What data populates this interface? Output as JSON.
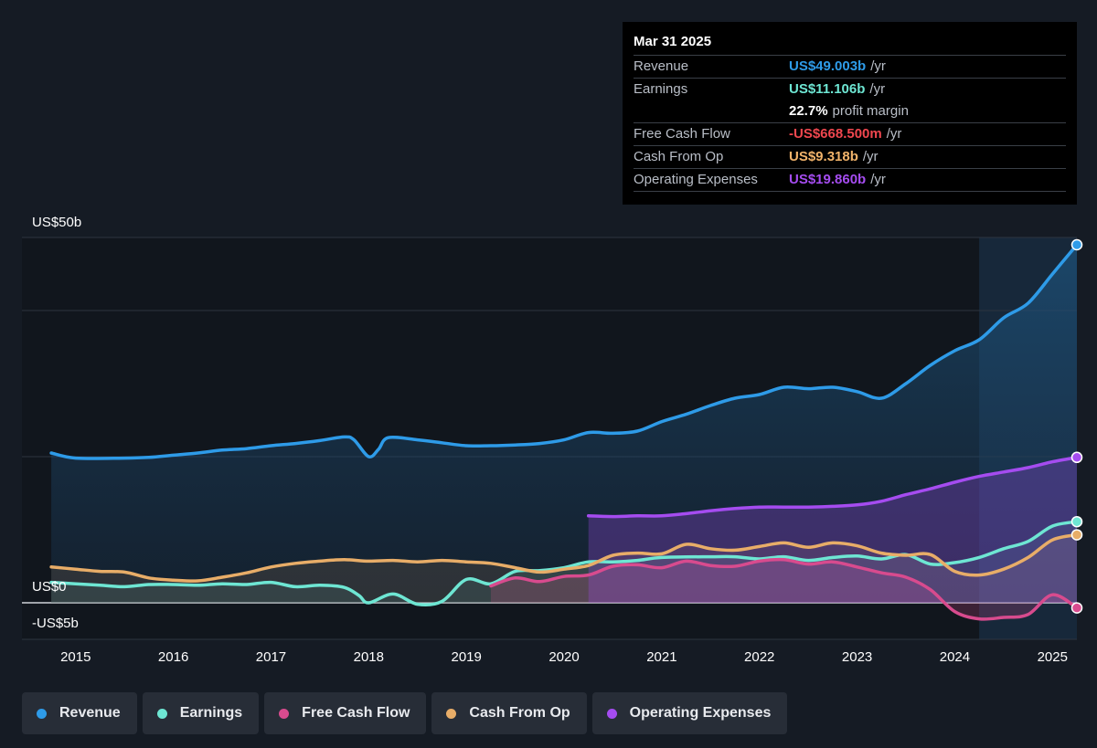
{
  "tooltip": {
    "date": "Mar 31 2025",
    "rows": [
      {
        "label": "Revenue",
        "value": "US$49.003b",
        "unit": "/yr",
        "color": "#2e9be8"
      },
      {
        "label": "Earnings",
        "value": "US$11.106b",
        "unit": "/yr",
        "color": "#6ee6d3"
      },
      {
        "label": "",
        "value": "22.7%",
        "unit": "profit margin",
        "color": "#ffffff"
      },
      {
        "label": "Free Cash Flow",
        "value": "-US$668.500m",
        "unit": "/yr",
        "color": "#f0474f"
      },
      {
        "label": "Cash From Op",
        "value": "US$9.318b",
        "unit": "/yr",
        "color": "#f2b46b"
      },
      {
        "label": "Operating Expenses",
        "value": "US$19.860b",
        "unit": "/yr",
        "color": "#a54cf0"
      }
    ]
  },
  "legend": [
    {
      "label": "Revenue",
      "color": "#2e9be8"
    },
    {
      "label": "Earnings",
      "color": "#6ee6d3"
    },
    {
      "label": "Free Cash Flow",
      "color": "#d84b8e"
    },
    {
      "label": "Cash From Op",
      "color": "#e8ad68"
    },
    {
      "label": "Operating Expenses",
      "color": "#a54cf0"
    }
  ],
  "chart_data": {
    "type": "line",
    "y_axis_labels": {
      "top": "US$50b",
      "zero": "US$0",
      "bottom": "-US$5b"
    },
    "ylim": [
      -5,
      50
    ],
    "xlim": [
      2014.45,
      2025.25
    ],
    "x_ticks": [
      2015,
      2016,
      2017,
      2018,
      2019,
      2020,
      2021,
      2022,
      2023,
      2024,
      2025
    ],
    "gridlines": [
      50,
      40,
      20,
      0
    ],
    "forecast_shade_start": 2024.25,
    "series": [
      {
        "name": "Revenue",
        "color": "#2e9be8",
        "points": [
          [
            2014.75,
            20.5
          ],
          [
            2015.0,
            19.8
          ],
          [
            2015.5,
            19.8
          ],
          [
            2015.75,
            19.9
          ],
          [
            2016.0,
            20.2
          ],
          [
            2016.25,
            20.5
          ],
          [
            2016.5,
            20.9
          ],
          [
            2016.75,
            21.1
          ],
          [
            2017.0,
            21.5
          ],
          [
            2017.25,
            21.8
          ],
          [
            2017.5,
            22.2
          ],
          [
            2017.75,
            22.7
          ],
          [
            2017.85,
            22.3
          ],
          [
            2018.0,
            20.0
          ],
          [
            2018.1,
            21.0
          ],
          [
            2018.2,
            22.6
          ],
          [
            2018.5,
            22.3
          ],
          [
            2018.75,
            21.9
          ],
          [
            2019.0,
            21.5
          ],
          [
            2019.25,
            21.5
          ],
          [
            2019.5,
            21.6
          ],
          [
            2019.75,
            21.8
          ],
          [
            2020.0,
            22.3
          ],
          [
            2020.25,
            23.3
          ],
          [
            2020.5,
            23.2
          ],
          [
            2020.75,
            23.5
          ],
          [
            2021.0,
            24.8
          ],
          [
            2021.25,
            25.8
          ],
          [
            2021.5,
            27.0
          ],
          [
            2021.75,
            28.0
          ],
          [
            2022.0,
            28.5
          ],
          [
            2022.25,
            29.5
          ],
          [
            2022.5,
            29.3
          ],
          [
            2022.75,
            29.5
          ],
          [
            2023.0,
            28.9
          ],
          [
            2023.25,
            28.0
          ],
          [
            2023.5,
            30.0
          ],
          [
            2023.75,
            32.5
          ],
          [
            2024.0,
            34.5
          ],
          [
            2024.25,
            36.0
          ],
          [
            2024.5,
            39.0
          ],
          [
            2024.75,
            41.0
          ],
          [
            2025.0,
            45.0
          ],
          [
            2025.25,
            49.0
          ]
        ]
      },
      {
        "name": "Earnings",
        "color": "#6ee6d3",
        "points": [
          [
            2014.75,
            2.8
          ],
          [
            2015.0,
            2.6
          ],
          [
            2015.25,
            2.4
          ],
          [
            2015.5,
            2.2
          ],
          [
            2015.75,
            2.5
          ],
          [
            2016.0,
            2.5
          ],
          [
            2016.25,
            2.4
          ],
          [
            2016.5,
            2.6
          ],
          [
            2016.75,
            2.5
          ],
          [
            2017.0,
            2.8
          ],
          [
            2017.25,
            2.2
          ],
          [
            2017.5,
            2.4
          ],
          [
            2017.75,
            2.1
          ],
          [
            2017.9,
            1.0
          ],
          [
            2018.0,
            0.0
          ],
          [
            2018.25,
            1.2
          ],
          [
            2018.5,
            -0.2
          ],
          [
            2018.75,
            0.2
          ],
          [
            2019.0,
            3.2
          ],
          [
            2019.25,
            2.6
          ],
          [
            2019.5,
            4.3
          ],
          [
            2019.75,
            4.4
          ],
          [
            2020.0,
            4.8
          ],
          [
            2020.25,
            5.6
          ],
          [
            2020.5,
            5.6
          ],
          [
            2020.75,
            5.8
          ],
          [
            2021.0,
            6.2
          ],
          [
            2021.5,
            6.3
          ],
          [
            2021.75,
            6.3
          ],
          [
            2022.0,
            6.0
          ],
          [
            2022.25,
            6.3
          ],
          [
            2022.5,
            5.8
          ],
          [
            2022.75,
            6.2
          ],
          [
            2023.0,
            6.4
          ],
          [
            2023.25,
            6.0
          ],
          [
            2023.5,
            6.6
          ],
          [
            2023.75,
            5.3
          ],
          [
            2024.0,
            5.5
          ],
          [
            2024.25,
            6.2
          ],
          [
            2024.5,
            7.4
          ],
          [
            2024.75,
            8.4
          ],
          [
            2025.0,
            10.5
          ],
          [
            2025.25,
            11.1
          ]
        ]
      },
      {
        "name": "Free Cash Flow",
        "color": "#d84b8e",
        "points": [
          [
            2019.25,
            2.3
          ],
          [
            2019.5,
            3.4
          ],
          [
            2019.75,
            2.9
          ],
          [
            2020.0,
            3.6
          ],
          [
            2020.25,
            3.8
          ],
          [
            2020.5,
            5.0
          ],
          [
            2020.75,
            5.2
          ],
          [
            2021.0,
            4.8
          ],
          [
            2021.25,
            5.7
          ],
          [
            2021.5,
            5.1
          ],
          [
            2021.75,
            5.0
          ],
          [
            2022.0,
            5.7
          ],
          [
            2022.25,
            5.9
          ],
          [
            2022.5,
            5.3
          ],
          [
            2022.75,
            5.6
          ],
          [
            2023.0,
            4.9
          ],
          [
            2023.25,
            4.1
          ],
          [
            2023.5,
            3.5
          ],
          [
            2023.75,
            1.8
          ],
          [
            2024.0,
            -1.2
          ],
          [
            2024.25,
            -2.2
          ],
          [
            2024.5,
            -2.0
          ],
          [
            2024.75,
            -1.6
          ],
          [
            2025.0,
            1.1
          ],
          [
            2025.25,
            -0.7
          ]
        ]
      },
      {
        "name": "Cash From Op",
        "color": "#e8ad68",
        "points": [
          [
            2014.75,
            4.9
          ],
          [
            2015.0,
            4.6
          ],
          [
            2015.25,
            4.3
          ],
          [
            2015.5,
            4.2
          ],
          [
            2015.75,
            3.4
          ],
          [
            2016.0,
            3.1
          ],
          [
            2016.25,
            3.0
          ],
          [
            2016.5,
            3.5
          ],
          [
            2016.75,
            4.1
          ],
          [
            2017.0,
            4.9
          ],
          [
            2017.25,
            5.4
          ],
          [
            2017.5,
            5.7
          ],
          [
            2017.75,
            5.9
          ],
          [
            2018.0,
            5.7
          ],
          [
            2018.25,
            5.8
          ],
          [
            2018.5,
            5.6
          ],
          [
            2018.75,
            5.8
          ],
          [
            2019.0,
            5.6
          ],
          [
            2019.25,
            5.4
          ],
          [
            2019.5,
            4.8
          ],
          [
            2019.75,
            4.2
          ],
          [
            2020.0,
            4.6
          ],
          [
            2020.25,
            5.1
          ],
          [
            2020.5,
            6.5
          ],
          [
            2020.75,
            6.8
          ],
          [
            2021.0,
            6.7
          ],
          [
            2021.25,
            8.0
          ],
          [
            2021.5,
            7.4
          ],
          [
            2021.75,
            7.2
          ],
          [
            2022.0,
            7.7
          ],
          [
            2022.25,
            8.2
          ],
          [
            2022.5,
            7.6
          ],
          [
            2022.75,
            8.2
          ],
          [
            2023.0,
            7.8
          ],
          [
            2023.25,
            6.8
          ],
          [
            2023.5,
            6.5
          ],
          [
            2023.75,
            6.6
          ],
          [
            2024.0,
            4.3
          ],
          [
            2024.25,
            3.8
          ],
          [
            2024.5,
            4.6
          ],
          [
            2024.75,
            6.2
          ],
          [
            2025.0,
            8.6
          ],
          [
            2025.25,
            9.3
          ]
        ]
      },
      {
        "name": "Operating Expenses",
        "color": "#a54cf0",
        "points": [
          [
            2020.25,
            11.9
          ],
          [
            2020.5,
            11.8
          ],
          [
            2020.75,
            11.9
          ],
          [
            2021.0,
            11.9
          ],
          [
            2021.25,
            12.2
          ],
          [
            2021.5,
            12.6
          ],
          [
            2021.75,
            12.9
          ],
          [
            2022.0,
            13.1
          ],
          [
            2022.25,
            13.1
          ],
          [
            2022.5,
            13.1
          ],
          [
            2022.75,
            13.2
          ],
          [
            2023.0,
            13.4
          ],
          [
            2023.25,
            13.9
          ],
          [
            2023.5,
            14.8
          ],
          [
            2023.75,
            15.6
          ],
          [
            2024.0,
            16.5
          ],
          [
            2024.25,
            17.3
          ],
          [
            2024.5,
            17.9
          ],
          [
            2024.75,
            18.5
          ],
          [
            2025.0,
            19.3
          ],
          [
            2025.25,
            19.9
          ]
        ]
      }
    ]
  }
}
